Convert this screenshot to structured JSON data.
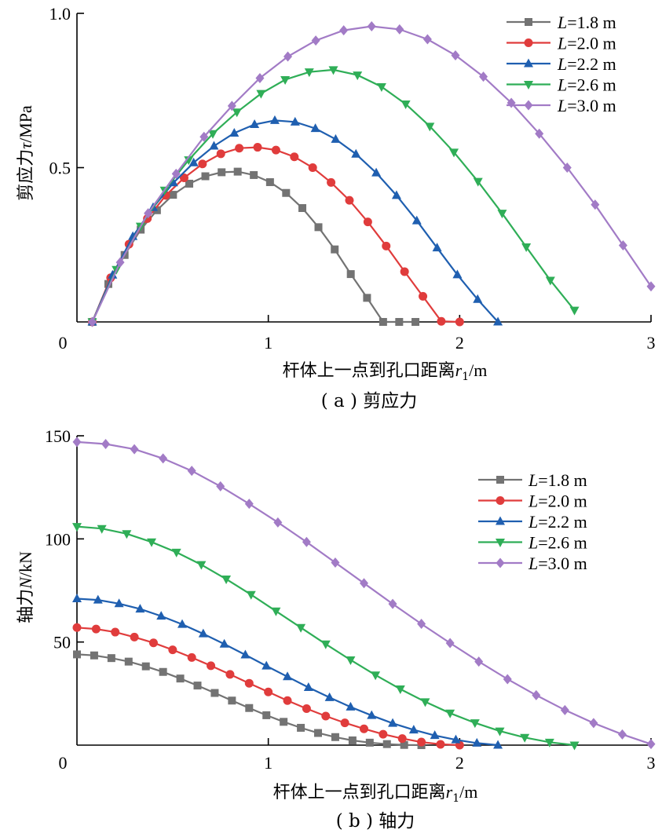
{
  "chart_data": [
    {
      "type": "line",
      "caption": "( a ) 剪应力",
      "xlabel_prefix": "杆体上一点到孔口距离",
      "xlabel_var": "r",
      "xlabel_sub": "1",
      "xlabel_unit": "/m",
      "ylabel_prefix": "剪应力",
      "ylabel_var": "τ",
      "ylabel_unit": "/MPa",
      "xlim": [
        0,
        3
      ],
      "ylim": [
        0,
        1.0
      ],
      "xticks": [
        "0",
        "1",
        "2",
        "3"
      ],
      "yticks": [
        {
          "v": 0.5,
          "label": "0.5"
        },
        {
          "v": 1.0,
          "label": "1.0"
        }
      ],
      "legend_position": "top-right",
      "series": [
        {
          "name": "L=1.8 m",
          "var": "L",
          "value": "=1.8 m",
          "color": "#737373",
          "marker": "square",
          "x": [
            0.08,
            0.164,
            0.249,
            0.333,
            0.418,
            0.502,
            0.587,
            0.671,
            0.756,
            0.84,
            0.924,
            1.009,
            1.093,
            1.178,
            1.262,
            1.347,
            1.431,
            1.516,
            1.6,
            1.684,
            1.769
          ],
          "y": [
            0,
            0.123,
            0.217,
            0.299,
            0.362,
            0.412,
            0.448,
            0.472,
            0.485,
            0.487,
            0.476,
            0.453,
            0.418,
            0.369,
            0.307,
            0.235,
            0.155,
            0.078,
            0,
            0,
            0
          ]
        },
        {
          "name": "L=2.0 m",
          "var": "L",
          "value": "=2.0 m",
          "color": "#e03c3c",
          "marker": "circle",
          "x": [
            0.08,
            0.176,
            0.272,
            0.368,
            0.464,
            0.56,
            0.656,
            0.752,
            0.848,
            0.944,
            1.04,
            1.136,
            1.232,
            1.328,
            1.424,
            1.52,
            1.616,
            1.712,
            1.808,
            1.904,
            2.0
          ],
          "y": [
            0,
            0.143,
            0.252,
            0.335,
            0.41,
            0.467,
            0.512,
            0.545,
            0.563,
            0.566,
            0.557,
            0.535,
            0.5,
            0.452,
            0.394,
            0.324,
            0.246,
            0.163,
            0.083,
            0.002,
            0
          ]
        },
        {
          "name": "L=2.2 m",
          "var": "L",
          "value": "=2.2 m",
          "color": "#1f5fb0",
          "marker": "triangle-up",
          "x": [
            0.08,
            0.186,
            0.292,
            0.398,
            0.504,
            0.61,
            0.716,
            0.822,
            0.928,
            1.034,
            1.14,
            1.246,
            1.352,
            1.458,
            1.564,
            1.67,
            1.776,
            1.882,
            1.988,
            2.094,
            2.2
          ],
          "y": [
            0,
            0.152,
            0.277,
            0.371,
            0.451,
            0.516,
            0.57,
            0.612,
            0.64,
            0.653,
            0.648,
            0.627,
            0.592,
            0.544,
            0.483,
            0.41,
            0.328,
            0.24,
            0.153,
            0.073,
            0
          ]
        },
        {
          "name": "L=2.6 m",
          "var": "L",
          "value": "=2.6 m",
          "color": "#2fae57",
          "marker": "triangle-down",
          "x": [
            0.08,
            0.206,
            0.332,
            0.458,
            0.584,
            0.71,
            0.836,
            0.962,
            1.088,
            1.214,
            1.34,
            1.466,
            1.592,
            1.718,
            1.844,
            1.97,
            2.096,
            2.222,
            2.348,
            2.474,
            2.6
          ],
          "y": [
            0,
            0.17,
            0.31,
            0.427,
            0.525,
            0.61,
            0.68,
            0.74,
            0.785,
            0.81,
            0.817,
            0.8,
            0.762,
            0.706,
            0.634,
            0.55,
            0.455,
            0.352,
            0.243,
            0.135,
            0.038
          ]
        },
        {
          "name": "L=3.0 m",
          "var": "L",
          "value": "=3.0 m",
          "color": "#a27bc6",
          "marker": "diamond",
          "x": [
            0.08,
            0.226,
            0.372,
            0.518,
            0.664,
            0.81,
            0.956,
            1.102,
            1.248,
            1.394,
            1.54,
            1.686,
            1.832,
            1.978,
            2.124,
            2.27,
            2.416,
            2.562,
            2.708,
            2.854,
            3.0
          ],
          "y": [
            0,
            0.193,
            0.352,
            0.48,
            0.6,
            0.7,
            0.79,
            0.86,
            0.912,
            0.945,
            0.958,
            0.948,
            0.916,
            0.864,
            0.795,
            0.71,
            0.61,
            0.5,
            0.38,
            0.248,
            0.115
          ]
        }
      ]
    },
    {
      "type": "line",
      "caption": "( b ) 轴力",
      "xlabel_prefix": "杆体上一点到孔口距离",
      "xlabel_var": "r",
      "xlabel_sub": "1",
      "xlabel_unit": "/m",
      "ylabel_prefix": "轴力",
      "ylabel_var": "N",
      "ylabel_unit": "/kN",
      "xlim": [
        0,
        3
      ],
      "ylim": [
        0,
        150
      ],
      "xticks": [
        "0",
        "1",
        "2",
        "3"
      ],
      "yticks": [
        {
          "v": 50,
          "label": "50"
        },
        {
          "v": 100,
          "label": "100"
        },
        {
          "v": 150,
          "label": "150"
        }
      ],
      "legend_position": "top-right",
      "series": [
        {
          "name": "L=1.8 m",
          "var": "L",
          "value": "=1.8 m",
          "color": "#737373",
          "marker": "square",
          "x": [
            0.0,
            0.09,
            0.18,
            0.27,
            0.36,
            0.45,
            0.54,
            0.63,
            0.72,
            0.81,
            0.9,
            0.99,
            1.08,
            1.17,
            1.26,
            1.35,
            1.44,
            1.53,
            1.62,
            1.71,
            1.8
          ],
          "y": [
            44.0,
            43.5,
            42.2,
            40.5,
            38.2,
            35.5,
            32.3,
            28.9,
            25.3,
            21.6,
            18.0,
            14.5,
            11.3,
            8.4,
            5.9,
            3.9,
            2.3,
            1.2,
            0.5,
            0.1,
            0
          ]
        },
        {
          "name": "L=2.0 m",
          "var": "L",
          "value": "=2.0 m",
          "color": "#e03c3c",
          "marker": "circle",
          "x": [
            0.0,
            0.1,
            0.2,
            0.3,
            0.4,
            0.5,
            0.6,
            0.7,
            0.8,
            0.9,
            1.0,
            1.1,
            1.2,
            1.3,
            1.4,
            1.5,
            1.6,
            1.7,
            1.8,
            1.9,
            2.0
          ],
          "y": [
            57.0,
            56.3,
            54.8,
            52.4,
            49.6,
            46.2,
            42.5,
            38.5,
            34.3,
            30.0,
            25.8,
            21.6,
            17.7,
            14.1,
            10.8,
            7.9,
            5.3,
            3.2,
            1.5,
            0.4,
            0
          ]
        },
        {
          "name": "L=2.2 m",
          "var": "L",
          "value": "=2.2 m",
          "color": "#1f5fb0",
          "marker": "triangle-up",
          "x": [
            0.0,
            0.11,
            0.22,
            0.33,
            0.44,
            0.55,
            0.66,
            0.77,
            0.88,
            0.99,
            1.1,
            1.21,
            1.32,
            1.43,
            1.54,
            1.65,
            1.76,
            1.87,
            1.98,
            2.09,
            2.2
          ],
          "y": [
            71.0,
            70.4,
            68.6,
            66.0,
            62.6,
            58.6,
            54.0,
            49.0,
            43.8,
            38.4,
            33.2,
            28.0,
            23.1,
            18.5,
            14.4,
            10.6,
            7.4,
            4.7,
            2.6,
            1.0,
            0
          ]
        },
        {
          "name": "L=2.6 m",
          "var": "L",
          "value": "=2.6 m",
          "color": "#2fae57",
          "marker": "triangle-down",
          "x": [
            0.0,
            0.13,
            0.26,
            0.39,
            0.52,
            0.65,
            0.78,
            0.91,
            1.04,
            1.17,
            1.3,
            1.43,
            1.56,
            1.69,
            1.82,
            1.95,
            2.08,
            2.21,
            2.34,
            2.47,
            2.6
          ],
          "y": [
            106.0,
            105.0,
            102.5,
            98.5,
            93.5,
            87.5,
            80.5,
            73.0,
            65.0,
            57.0,
            49.0,
            41.3,
            34.0,
            27.2,
            21.0,
            15.5,
            10.8,
            6.8,
            3.7,
            1.4,
            0
          ]
        },
        {
          "name": "L=3.0 m",
          "var": "L",
          "value": "=3.0 m",
          "color": "#a27bc6",
          "marker": "diamond",
          "x": [
            0.0,
            0.15,
            0.3,
            0.45,
            0.6,
            0.75,
            0.9,
            1.05,
            1.2,
            1.35,
            1.5,
            1.65,
            1.8,
            1.95,
            2.1,
            2.25,
            2.4,
            2.55,
            2.7,
            2.85,
            3.0
          ],
          "y": [
            147.0,
            146.0,
            143.5,
            139.0,
            133.0,
            125.5,
            117.0,
            108.0,
            98.5,
            88.5,
            78.5,
            68.5,
            58.8,
            49.5,
            40.5,
            32.0,
            24.2,
            17.0,
            10.7,
            5.2,
            0.5
          ]
        }
      ]
    }
  ]
}
